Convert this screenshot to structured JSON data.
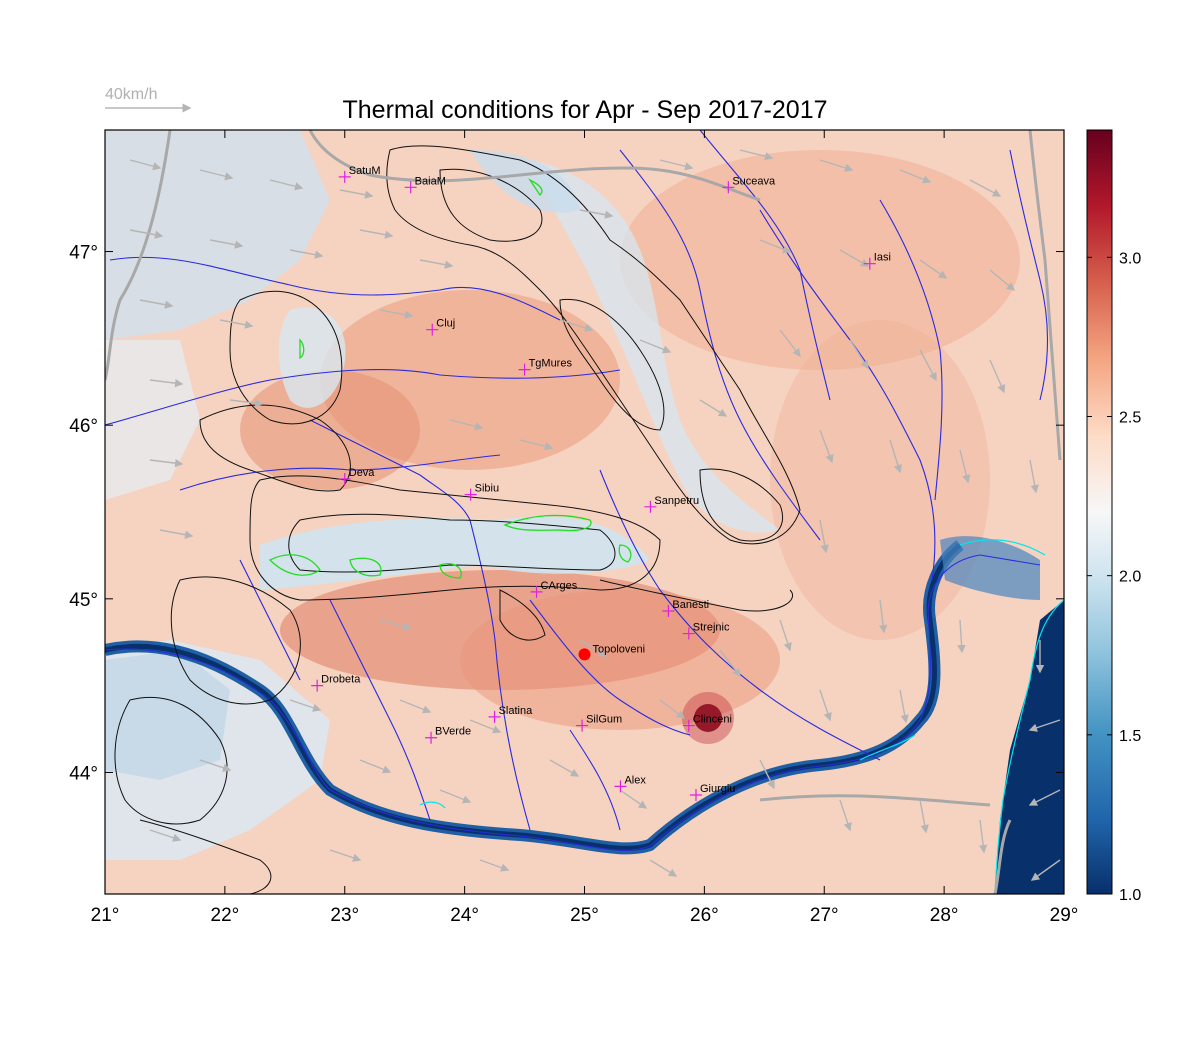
{
  "title": "Thermal conditions for Apr - Sep  2017-2017",
  "wind_legend": {
    "label": "40km/h"
  },
  "map": {
    "lon_range": [
      21,
      29
    ],
    "lat_range": [
      43.3,
      47.7
    ],
    "x_ticks": [
      "21°",
      "22°",
      "23°",
      "24°",
      "25°",
      "26°",
      "27°",
      "28°",
      "29°"
    ],
    "y_ticks": [
      "47°",
      "46°",
      "45°",
      "44°"
    ],
    "y_tick_values": [
      47,
      46,
      45,
      44
    ]
  },
  "colorbar": {
    "range": [
      1.0,
      3.4
    ],
    "tick_values": [
      1.0,
      1.5,
      2.0,
      2.5,
      3.0
    ],
    "tick_labels": [
      "1.0",
      "1.5",
      "2.0",
      "2.5",
      "3.0"
    ],
    "colors": [
      "#08306b",
      "#2166ac",
      "#4393c3",
      "#92c5de",
      "#d1e5f0",
      "#f7f7f7",
      "#fddbc7",
      "#f4a582",
      "#d6604d",
      "#b2182b",
      "#67001f"
    ]
  },
  "cities": [
    {
      "name": "SatuM",
      "lon": 23.0,
      "lat": 47.43
    },
    {
      "name": "BaiaM",
      "lon": 23.55,
      "lat": 47.37
    },
    {
      "name": "Suceava",
      "lon": 26.2,
      "lat": 47.37
    },
    {
      "name": "Iasi",
      "lon": 27.38,
      "lat": 46.93
    },
    {
      "name": "Cluj",
      "lon": 23.73,
      "lat": 46.55
    },
    {
      "name": "TgMures",
      "lon": 24.5,
      "lat": 46.32
    },
    {
      "name": "Deva",
      "lon": 23.0,
      "lat": 45.69
    },
    {
      "name": "Sibiu",
      "lon": 24.05,
      "lat": 45.6
    },
    {
      "name": "Sanpetru",
      "lon": 25.55,
      "lat": 45.53
    },
    {
      "name": "CArges",
      "lon": 24.6,
      "lat": 45.04
    },
    {
      "name": "Banesti",
      "lon": 25.7,
      "lat": 44.93
    },
    {
      "name": "Strejnic",
      "lon": 25.87,
      "lat": 44.8
    },
    {
      "name": "Drobeta",
      "lon": 22.77,
      "lat": 44.5
    },
    {
      "name": "Slatina",
      "lon": 24.25,
      "lat": 44.32
    },
    {
      "name": "SilGum",
      "lon": 24.98,
      "lat": 44.27
    },
    {
      "name": "Clinceni",
      "lon": 25.87,
      "lat": 44.27
    },
    {
      "name": "BVerde",
      "lon": 23.72,
      "lat": 44.2
    },
    {
      "name": "Alex",
      "lon": 25.3,
      "lat": 43.92
    },
    {
      "name": "Giurgiu",
      "lon": 25.93,
      "lat": 43.87
    }
  ],
  "highlight_site": {
    "name": "Topoloveni",
    "lon": 25.0,
    "lat": 44.68
  }
}
